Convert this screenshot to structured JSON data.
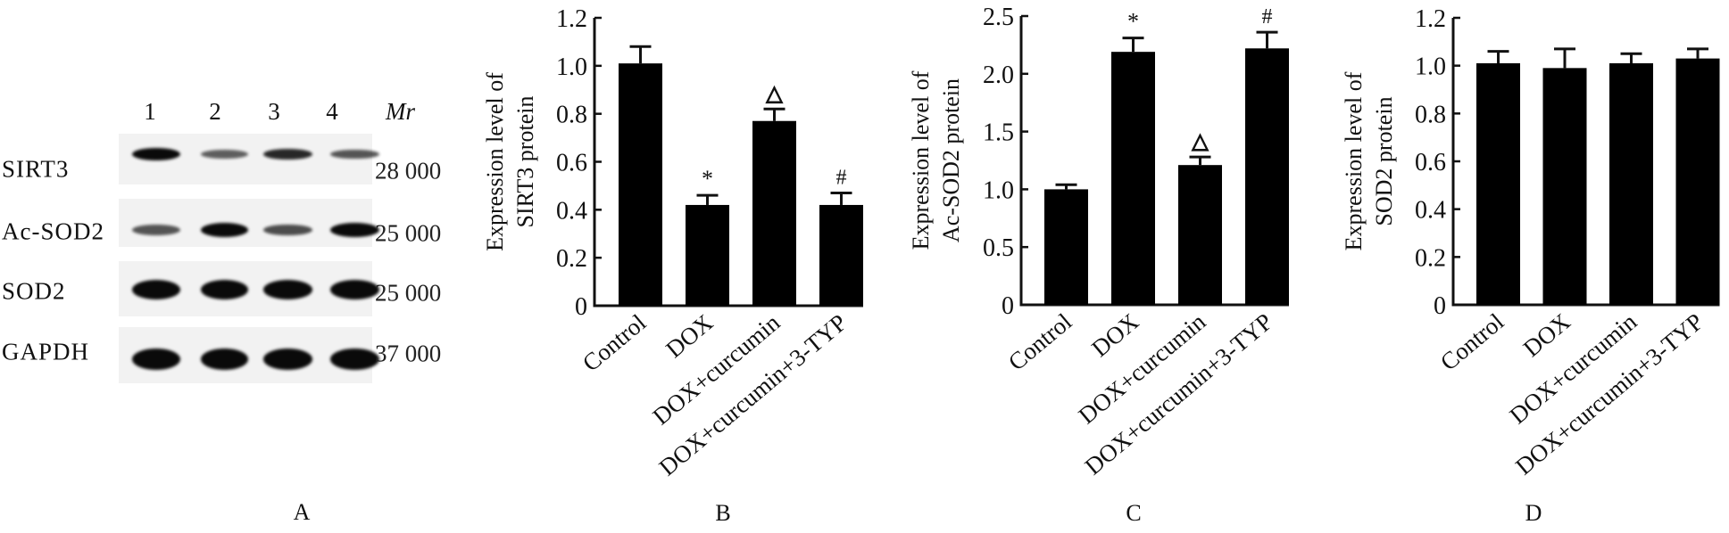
{
  "panel_a": {
    "letter": "A",
    "lanes": [
      "1",
      "2",
      "3",
      "4"
    ],
    "mr_header": "Mr",
    "rows": [
      {
        "label": "SIRT3",
        "mr": "28 000",
        "band_intensity": [
          1.0,
          0.45,
          0.8,
          0.5
        ]
      },
      {
        "label": "Ac-SOD2",
        "mr": "25 000",
        "band_intensity": [
          0.5,
          1.0,
          0.55,
          1.0
        ]
      },
      {
        "label": "SOD2",
        "mr": "25 000",
        "band_intensity": [
          1.0,
          1.0,
          1.0,
          1.0
        ]
      },
      {
        "label": "GAPDH",
        "mr": "37 000",
        "band_intensity": [
          1.0,
          1.0,
          1.0,
          1.0
        ]
      }
    ]
  },
  "chart_data": [
    {
      "panel": "B",
      "type": "bar",
      "title": "",
      "xlabel": "",
      "ylabel_lines": [
        "Expression level of",
        "SIRT3 protein"
      ],
      "categories": [
        "Control",
        "DOX",
        "DOX+curcumin",
        "DOX+curcumin+3-TYP"
      ],
      "values": [
        1.01,
        0.42,
        0.77,
        0.42
      ],
      "error": [
        0.07,
        0.04,
        0.05,
        0.05
      ],
      "markers": [
        "",
        "*",
        "△",
        "#"
      ],
      "ylim": [
        0,
        1.2
      ],
      "yticks": [
        0,
        0.2,
        0.4,
        0.6,
        0.8,
        1.0,
        1.2
      ],
      "ytick_labels": [
        "0",
        "0.2",
        "0.4",
        "0.6",
        "0.8",
        "1.0",
        "1.2"
      ],
      "grid": false,
      "bar_color": "#000000"
    },
    {
      "panel": "C",
      "type": "bar",
      "title": "",
      "xlabel": "",
      "ylabel_lines": [
        "Expression level of",
        "Ac-SOD2 protein"
      ],
      "categories": [
        "Control",
        "DOX",
        "DOX+curcumin",
        "DOX+curcumin+3-TYP"
      ],
      "values": [
        1.0,
        2.19,
        1.21,
        2.22
      ],
      "error": [
        0.04,
        0.12,
        0.07,
        0.14
      ],
      "markers": [
        "",
        "*",
        "△",
        "#"
      ],
      "ylim": [
        0,
        2.5
      ],
      "yticks": [
        0,
        0.5,
        1.0,
        1.5,
        2.0,
        2.5
      ],
      "ytick_labels": [
        "0",
        "0.5",
        "1.0",
        "1.5",
        "2.0",
        "2.5"
      ],
      "grid": false,
      "bar_color": "#000000"
    },
    {
      "panel": "D",
      "type": "bar",
      "title": "",
      "xlabel": "",
      "ylabel_lines": [
        "Expression level of",
        "SOD2 protein"
      ],
      "categories": [
        "Control",
        "DOX",
        "DOX+curcumin",
        "DOX+curcumin+3-TYP"
      ],
      "values": [
        1.01,
        0.99,
        1.01,
        1.03
      ],
      "error": [
        0.05,
        0.08,
        0.04,
        0.04
      ],
      "markers": [
        "",
        "",
        "",
        ""
      ],
      "ylim": [
        0,
        1.2
      ],
      "yticks": [
        0,
        0.2,
        0.4,
        0.6,
        0.8,
        1.0,
        1.2
      ],
      "ytick_labels": [
        "0",
        "0.2",
        "0.4",
        "0.6",
        "0.8",
        "1.0",
        "1.2"
      ],
      "grid": false,
      "bar_color": "#000000"
    }
  ]
}
